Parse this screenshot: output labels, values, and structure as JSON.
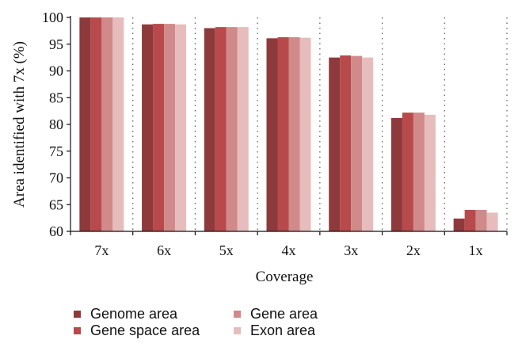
{
  "chart_data": {
    "type": "bar",
    "title": "",
    "xlabel": "Coverage",
    "ylabel": "Area identified with 7x (%)",
    "ylim": [
      60,
      100
    ],
    "yticks": [
      60,
      65,
      70,
      75,
      80,
      85,
      90,
      95,
      100
    ],
    "categories": [
      "7x",
      "6x",
      "5x",
      "4x",
      "3x",
      "2x",
      "1x"
    ],
    "grid": "dotted vertical lines between categories",
    "legend_position": "bottom",
    "series": [
      {
        "name": "Genome area",
        "color": "#8e3a3c",
        "values": [
          100,
          98.7,
          98.0,
          96.1,
          92.5,
          81.2,
          62.4
        ]
      },
      {
        "name": "Gene space area",
        "color": "#b84a4b",
        "values": [
          100,
          98.8,
          98.2,
          96.3,
          92.9,
          82.2,
          64.0
        ]
      },
      {
        "name": "Gene area",
        "color": "#d08a89",
        "values": [
          100,
          98.8,
          98.2,
          96.3,
          92.8,
          82.2,
          64.0
        ]
      },
      {
        "name": "Exon area",
        "color": "#e6bdbc",
        "values": [
          100,
          98.7,
          98.2,
          96.2,
          92.5,
          81.8,
          63.5
        ]
      }
    ]
  }
}
